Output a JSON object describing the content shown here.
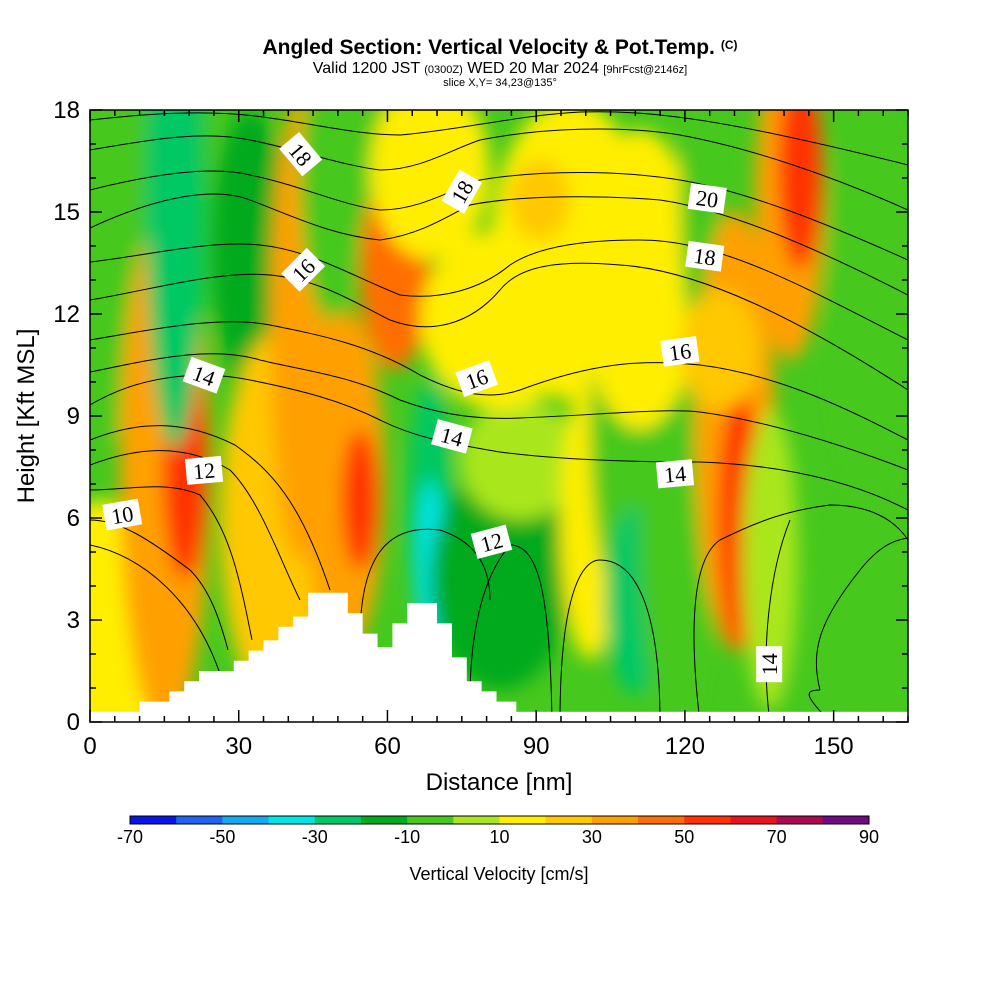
{
  "header": {
    "title": "Angled Section: Vertical Velocity & Pot.Temp.",
    "title_unit": "(C)",
    "valid_prefix": "Valid 1200 JST",
    "valid_z": "(0300Z)",
    "valid_suffix": "WED 20 Mar 2024",
    "forecast": "[9hrFcst@2146z]",
    "slice": "slice X,Y= 34,23@135°"
  },
  "chart_data": {
    "type": "heatmap",
    "xlabel": "Distance [nm]",
    "ylabel": "Height [Kft MSL]",
    "xlim": [
      0,
      165
    ],
    "ylim": [
      0,
      18
    ],
    "x_ticks": [
      0,
      30,
      60,
      90,
      120,
      150
    ],
    "y_ticks": [
      0,
      3,
      6,
      9,
      12,
      15,
      18
    ],
    "colorbar": {
      "title": "Vertical Velocity [cm/s]",
      "labels": [
        -70,
        -50,
        -30,
        -10,
        10,
        30,
        50,
        70,
        90
      ],
      "range": [
        -70,
        90
      ],
      "step": 10,
      "colors": [
        "#0a14e6",
        "#1e64f0",
        "#14aaf0",
        "#00e6e6",
        "#00c864",
        "#00aa1e",
        "#46c81e",
        "#aae61e",
        "#ffee00",
        "#ffc800",
        "#ffa000",
        "#ff6e00",
        "#ff3200",
        "#e6141e",
        "#aa0a50",
        "#6e0a82"
      ]
    },
    "terrain": [
      [
        10,
        0.3
      ],
      [
        10,
        0.6
      ],
      [
        16,
        0.6
      ],
      [
        16,
        0.9
      ],
      [
        19,
        0.9
      ],
      [
        19,
        1.2
      ],
      [
        22,
        1.2
      ],
      [
        22,
        1.5
      ],
      [
        29,
        1.5
      ],
      [
        29,
        1.8
      ],
      [
        32,
        1.8
      ],
      [
        32,
        2.1
      ],
      [
        35,
        2.1
      ],
      [
        35,
        2.4
      ],
      [
        38,
        2.4
      ],
      [
        38,
        2.8
      ],
      [
        41,
        2.8
      ],
      [
        41,
        3.1
      ],
      [
        44,
        3.1
      ],
      [
        44,
        3.8
      ],
      [
        52,
        3.8
      ],
      [
        52,
        3.2
      ],
      [
        55,
        3.2
      ],
      [
        55,
        2.6
      ],
      [
        58,
        2.6
      ],
      [
        58,
        2.2
      ],
      [
        61,
        2.2
      ],
      [
        61,
        2.9
      ],
      [
        64,
        2.9
      ],
      [
        64,
        3.5
      ],
      [
        70,
        3.5
      ],
      [
        70,
        2.9
      ],
      [
        73,
        2.9
      ],
      [
        73,
        1.9
      ],
      [
        76,
        1.9
      ],
      [
        76,
        1.2
      ],
      [
        79,
        1.2
      ],
      [
        79,
        0.9
      ],
      [
        82,
        0.9
      ],
      [
        82,
        0.6
      ],
      [
        86,
        0.6
      ],
      [
        86,
        0.3
      ]
    ],
    "isentrope_labels": [
      {
        "text": "10",
        "x": 6.5,
        "y": 6.1,
        "angle": -10
      },
      {
        "text": "12",
        "x": 23,
        "y": 7.4,
        "angle": -5
      },
      {
        "text": "14",
        "x": 23,
        "y": 10.2,
        "angle": 20
      },
      {
        "text": "16",
        "x": 43,
        "y": 13.3,
        "angle": -45
      },
      {
        "text": "18",
        "x": 42.5,
        "y": 16.7,
        "angle": 50
      },
      {
        "text": "14",
        "x": 73,
        "y": 8.4,
        "angle": 15
      },
      {
        "text": "16",
        "x": 78,
        "y": 10.1,
        "angle": -20
      },
      {
        "text": "18",
        "x": 75,
        "y": 15.6,
        "angle": -60
      },
      {
        "text": "12",
        "x": 81,
        "y": 5.3,
        "angle": -15
      },
      {
        "text": "20",
        "x": 124.5,
        "y": 15.4,
        "angle": 8
      },
      {
        "text": "18",
        "x": 124,
        "y": 13.7,
        "angle": 8
      },
      {
        "text": "16",
        "x": 119,
        "y": 10.9,
        "angle": -8
      },
      {
        "text": "14",
        "x": 118,
        "y": 7.3,
        "angle": -5
      },
      {
        "text": "14",
        "x": 137,
        "y": 1.7,
        "angle": -90
      }
    ]
  }
}
